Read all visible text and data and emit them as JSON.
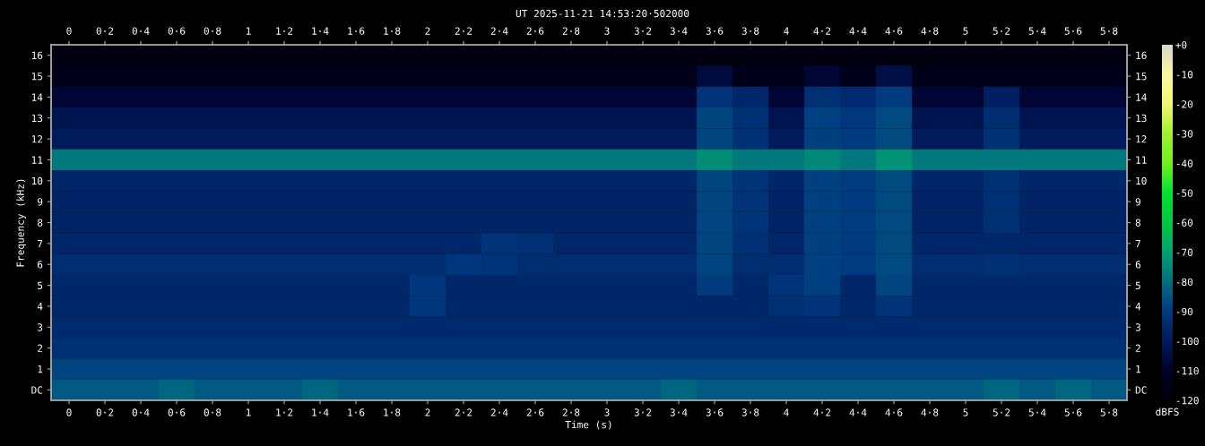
{
  "chart_data": {
    "type": "heatmap",
    "title": "UT 2025-11-21 14:53:20·502000",
    "xlabel": "Time (s)",
    "ylabel": "Frequency (kHz)",
    "clabel": "dBFS",
    "categories": [
      "0",
      "0·2",
      "0·4",
      "0·6",
      "0·8",
      "1",
      "1·2",
      "1·4",
      "1·6",
      "1·8",
      "2",
      "2·2",
      "2·4",
      "2·6",
      "2·8",
      "3",
      "3·2",
      "3·4",
      "3·6",
      "3·8",
      "4",
      "4·2",
      "4·4",
      "4·6",
      "4·8",
      "5",
      "5·2",
      "5·4",
      "5·6",
      "5·8"
    ],
    "y_categories": [
      "16",
      "15",
      "14",
      "13",
      "12",
      "11",
      "10",
      "9",
      "8",
      "7",
      "6",
      "5",
      "4",
      "3",
      "2",
      "1",
      "DC"
    ],
    "y2_categories": [
      "16",
      "15",
      "14",
      "13",
      "12",
      "11",
      "10",
      "9",
      "8",
      "7",
      "6",
      "5",
      "4",
      "3",
      "2",
      "1",
      "DC"
    ],
    "clim": [
      -120,
      0
    ],
    "cticks": [
      {
        "value": 0,
        "label": "+0"
      },
      -10,
      -20,
      -30,
      -40,
      -50,
      -60,
      -70,
      -80,
      -90,
      -100,
      -110,
      -120
    ],
    "cells": [
      [
        -118,
        -118,
        -118,
        -118,
        -118,
        -118,
        -118,
        -118,
        -118,
        -118,
        -118,
        -118,
        -118,
        -118,
        -118,
        -118,
        -118,
        -118,
        -118,
        -118,
        -118,
        -118,
        -118,
        -118,
        -118,
        -118,
        -118,
        -118,
        -118,
        -118
      ],
      [
        -114,
        -114,
        -114,
        -114,
        -114,
        -114,
        -114,
        -114,
        -114,
        -114,
        -114,
        -114,
        -114,
        -114,
        -114,
        -114,
        -114,
        -114,
        -106,
        -114,
        -114,
        -108,
        -114,
        -104,
        -114,
        -114,
        -114,
        -114,
        -114,
        -114
      ],
      [
        -108,
        -108,
        -108,
        -108,
        -108,
        -108,
        -108,
        -108,
        -108,
        -108,
        -108,
        -108,
        -108,
        -108,
        -108,
        -108,
        -108,
        -108,
        -92,
        -96,
        -108,
        -93,
        -95,
        -90,
        -108,
        -108,
        -98,
        -108,
        -108,
        -108
      ],
      [
        -102,
        -102,
        -102,
        -102,
        -102,
        -102,
        -102,
        -102,
        -102,
        -102,
        -102,
        -102,
        -102,
        -102,
        -102,
        -102,
        -102,
        -102,
        -88,
        -93,
        -102,
        -89,
        -91,
        -87,
        -102,
        -102,
        -94,
        -102,
        -102,
        -102
      ],
      [
        -99,
        -99,
        -99,
        -99,
        -99,
        -99,
        -99,
        -99,
        -99,
        -99,
        -99,
        -99,
        -99,
        -99,
        -99,
        -99,
        -99,
        -99,
        -88,
        -93,
        -99,
        -89,
        -90,
        -87,
        -99,
        -99,
        -93,
        -99,
        -99,
        -99
      ],
      [
        -78,
        -78,
        -78,
        -78,
        -78,
        -78,
        -78,
        -78,
        -78,
        -78,
        -78,
        -78,
        -78,
        -78,
        -78,
        -78,
        -78,
        -78,
        -74,
        -78,
        -78,
        -75,
        -78,
        -73,
        -78,
        -78,
        -78,
        -78,
        -78,
        -78
      ],
      [
        -96,
        -96,
        -96,
        -96,
        -96,
        -96,
        -96,
        -96,
        -96,
        -96,
        -96,
        -96,
        -96,
        -96,
        -96,
        -96,
        -96,
        -96,
        -88,
        -92,
        -96,
        -89,
        -90,
        -87,
        -96,
        -96,
        -93,
        -96,
        -96,
        -96
      ],
      [
        -97,
        -97,
        -97,
        -97,
        -97,
        -97,
        -97,
        -97,
        -97,
        -97,
        -97,
        -97,
        -97,
        -97,
        -97,
        -97,
        -97,
        -97,
        -88,
        -92,
        -97,
        -89,
        -90,
        -87,
        -97,
        -97,
        -93,
        -97,
        -97,
        -97
      ],
      [
        -97,
        -97,
        -97,
        -97,
        -97,
        -97,
        -97,
        -97,
        -97,
        -97,
        -97,
        -97,
        -97,
        -97,
        -97,
        -97,
        -97,
        -97,
        -88,
        -92,
        -97,
        -89,
        -90,
        -87,
        -97,
        -97,
        -93,
        -97,
        -97,
        -97
      ],
      [
        -96,
        -96,
        -96,
        -96,
        -96,
        -96,
        -96,
        -96,
        -96,
        -96,
        -96,
        -96,
        -92,
        -93,
        -96,
        -96,
        -96,
        -96,
        -88,
        -93,
        -96,
        -89,
        -90,
        -87,
        -96,
        -96,
        -96,
        -96,
        -96,
        -96
      ],
      [
        -94,
        -94,
        -94,
        -94,
        -94,
        -94,
        -94,
        -94,
        -94,
        -94,
        -94,
        -91,
        -92,
        -94,
        -94,
        -94,
        -94,
        -94,
        -88,
        -94,
        -94,
        -89,
        -90,
        -87,
        -94,
        -94,
        -93,
        -94,
        -94,
        -94
      ],
      [
        -96,
        -96,
        -96,
        -96,
        -96,
        -96,
        -96,
        -96,
        -96,
        -96,
        -91,
        -96,
        -96,
        -96,
        -96,
        -96,
        -96,
        -96,
        -90,
        -96,
        -92,
        -89,
        -96,
        -88,
        -96,
        -96,
        -96,
        -96,
        -96,
        -96
      ],
      [
        -96,
        -96,
        -96,
        -96,
        -96,
        -96,
        -96,
        -96,
        -96,
        -96,
        -91,
        -96,
        -96,
        -96,
        -96,
        -96,
        -96,
        -96,
        -96,
        -96,
        -93,
        -92,
        -96,
        -92,
        -96,
        -96,
        -96,
        -96,
        -96,
        -96
      ],
      [
        -95,
        -95,
        -95,
        -95,
        -95,
        -95,
        -95,
        -95,
        -95,
        -95,
        -95,
        -95,
        -95,
        -95,
        -95,
        -95,
        -95,
        -95,
        -95,
        -95,
        -95,
        -95,
        -95,
        -95,
        -95,
        -95,
        -95,
        -95,
        -95,
        -95
      ],
      [
        -93,
        -93,
        -93,
        -93,
        -93,
        -93,
        -93,
        -93,
        -93,
        -93,
        -93,
        -93,
        -93,
        -93,
        -93,
        -93,
        -93,
        -93,
        -93,
        -93,
        -93,
        -93,
        -93,
        -93,
        -93,
        -93,
        -93,
        -93,
        -93,
        -93
      ],
      [
        -88,
        -88,
        -88,
        -88,
        -88,
        -88,
        -88,
        -88,
        -88,
        -88,
        -88,
        -88,
        -88,
        -88,
        -88,
        -88,
        -88,
        -88,
        -88,
        -88,
        -88,
        -88,
        -88,
        -88,
        -88,
        -88,
        -88,
        -88,
        -88,
        -88
      ],
      [
        -84,
        -84,
        -84,
        -82,
        -84,
        -84,
        -84,
        -82,
        -84,
        -84,
        -84,
        -84,
        -84,
        -84,
        -84,
        -84,
        -84,
        -82,
        -84,
        -84,
        -84,
        -84,
        -84,
        -84,
        -84,
        -84,
        -82,
        -84,
        -82,
        -84
      ]
    ]
  }
}
